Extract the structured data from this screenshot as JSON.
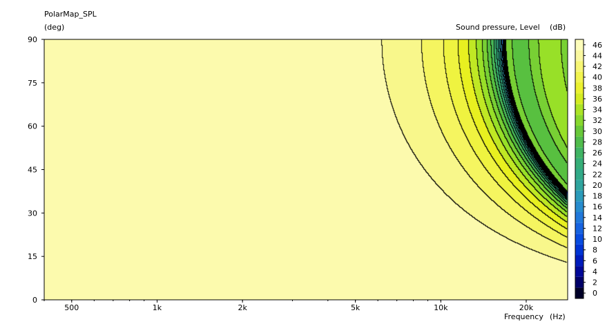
{
  "chart_data": {
    "type": "heatmap",
    "subtype": "contour",
    "title": "PolarMap_SPL",
    "ylabel": "(deg)",
    "xlabel": "Frequency",
    "xunit": "(Hz)",
    "colorbar_label": "Sound pressure, Level",
    "colorbar_unit": "(dB)",
    "xscale": "log",
    "xlim": [
      400,
      28000
    ],
    "ylim": [
      0,
      90
    ],
    "x_ticks": [
      {
        "value": 500,
        "label": "500"
      },
      {
        "value": 1000,
        "label": "1k"
      },
      {
        "value": 2000,
        "label": "2k"
      },
      {
        "value": 5000,
        "label": "5k"
      },
      {
        "value": 10000,
        "label": "10k"
      },
      {
        "value": 20000,
        "label": "20k"
      }
    ],
    "y_ticks": [
      {
        "value": 0,
        "label": "0"
      },
      {
        "value": 15,
        "label": "15"
      },
      {
        "value": 30,
        "label": "30"
      },
      {
        "value": 45,
        "label": "45"
      },
      {
        "value": 60,
        "label": "60"
      },
      {
        "value": 75,
        "label": "75"
      },
      {
        "value": 90,
        "label": "90"
      }
    ],
    "colorbar": {
      "min": -1,
      "max": 47,
      "tick_labels": [
        "0",
        "2",
        "4",
        "6",
        "8",
        "10",
        "12",
        "14",
        "16",
        "18",
        "20",
        "22",
        "24",
        "26",
        "28",
        "30",
        "32",
        "34",
        "36",
        "38",
        "40",
        "42",
        "44",
        "46"
      ],
      "stops": [
        {
          "value": -1,
          "color": "#000000"
        },
        {
          "value": 1,
          "color": "#000050"
        },
        {
          "value": 3,
          "color": "#000080"
        },
        {
          "value": 5,
          "color": "#0010B0"
        },
        {
          "value": 9,
          "color": "#0040E0"
        },
        {
          "value": 13,
          "color": "#1E6EE0"
        },
        {
          "value": 17,
          "color": "#2B96C8"
        },
        {
          "value": 21,
          "color": "#30A890"
        },
        {
          "value": 25,
          "color": "#38B070"
        },
        {
          "value": 29,
          "color": "#58C040"
        },
        {
          "value": 33,
          "color": "#98E028"
        },
        {
          "value": 37,
          "color": "#E8F020"
        },
        {
          "value": 41,
          "color": "#F5F560"
        },
        {
          "value": 44,
          "color": "#FAF8A0"
        },
        {
          "value": 47,
          "color": "#FFFFC8"
        }
      ]
    },
    "contour_step_db": 2,
    "field_model": {
      "level_on_axis_db": 46,
      "null_frequency_hz_at_90deg": 17000,
      "null_depth_db": 46,
      "sidelobe_level_db": 31
    }
  }
}
